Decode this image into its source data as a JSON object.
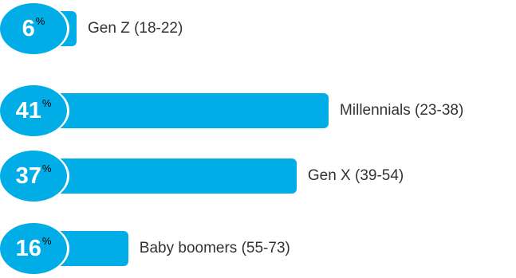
{
  "colors": {
    "bar": "#00ade6",
    "circle": "#00ade6"
  },
  "chart_data": {
    "type": "bar",
    "orientation": "horizontal",
    "categories": [
      "Gen Z (18-22)",
      "Millennials (23-38)",
      "Gen X (39-54)",
      "Baby boomers (55-73)"
    ],
    "values": [
      6,
      41,
      37,
      16
    ],
    "value_labels": [
      "6",
      "41",
      "37",
      "16"
    ],
    "value_suffix": "%",
    "xlim": [
      0,
      45
    ],
    "grid": false,
    "legend": "none"
  }
}
